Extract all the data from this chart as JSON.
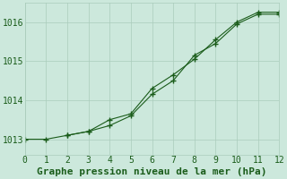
{
  "title": "Graphe pression niveau de la mer (hPa)",
  "bg_color": "#cce8dc",
  "grid_color": "#aaccbb",
  "line_color": "#1a5c1a",
  "xlim": [
    0,
    12
  ],
  "ylim": [
    1012.6,
    1016.5
  ],
  "xticks": [
    0,
    1,
    2,
    3,
    4,
    5,
    6,
    7,
    8,
    9,
    10,
    11,
    12
  ],
  "yticks": [
    1013,
    1014,
    1015,
    1016
  ],
  "series1_x": [
    0,
    1,
    2,
    3,
    4,
    5,
    6,
    7,
    8,
    9,
    10,
    11,
    12
  ],
  "series1_y": [
    1013.0,
    1013.0,
    1013.1,
    1013.2,
    1013.35,
    1013.6,
    1014.15,
    1014.5,
    1015.15,
    1015.45,
    1015.95,
    1016.2,
    1016.2
  ],
  "series2_x": [
    2,
    3,
    4,
    5,
    6,
    7,
    8,
    9,
    10,
    11,
    12
  ],
  "series2_y": [
    1013.1,
    1013.2,
    1013.5,
    1013.65,
    1014.3,
    1014.65,
    1015.05,
    1015.55,
    1016.0,
    1016.25,
    1016.25
  ],
  "title_fontsize": 8,
  "tick_fontsize": 7
}
